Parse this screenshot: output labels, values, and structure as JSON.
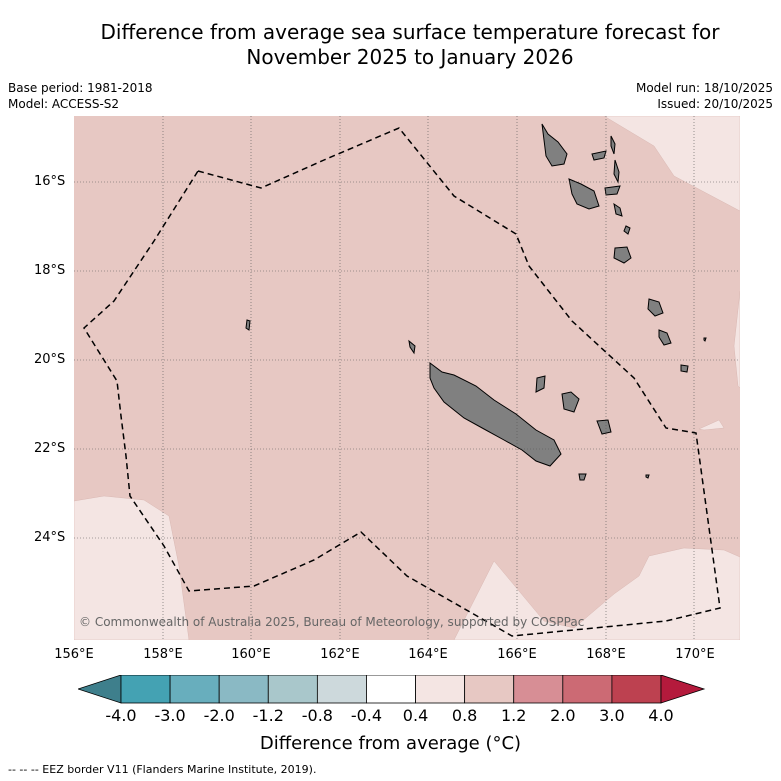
{
  "title_line1": "Difference from average sea surface temperature forecast for",
  "title_line2": "November 2025 to January 2026",
  "meta": {
    "base_period": "Base period: 1981-2018",
    "model": "Model: ACCESS-S2",
    "model_run": "Model run: 18/10/2025",
    "issued": "Issued: 20/10/2025"
  },
  "copyright": "© Commonwealth of Australia 2025, Bureau of Meteorology, supported by COSPPac",
  "axes": {
    "lat_labels": [
      "16°S",
      "18°S",
      "20°S",
      "22°S",
      "24°S"
    ],
    "lon_labels": [
      "156°E",
      "158°E",
      "160°E",
      "162°E",
      "164°E",
      "166°E",
      "168°E",
      "170°E"
    ]
  },
  "colorbar": {
    "title": "Difference from average (°C)",
    "tick_labels": [
      "-4.0",
      "-3.0",
      "-2.0",
      "-1.2",
      "-0.8",
      "-0.4",
      "0.4",
      "0.8",
      "1.2",
      "2.0",
      "3.0",
      "4.0"
    ],
    "colors": {
      "under": "#3e7f8c",
      "bins": [
        "#44a2b3",
        "#68aebd",
        "#8ab9c4",
        "#a9c7cb",
        "#cdd9dc",
        "#ffffff",
        "#f4e5e3",
        "#e7c8c3",
        "#d78e95",
        "#cc6a74",
        "#bd4150"
      ],
      "over": "#b41a3c"
    }
  },
  "map_colors": {
    "primary_anomaly": "#e7c8c3",
    "secondary_anomaly": "#f4e5e3",
    "land": "#808080"
  },
  "eez_legend": "--  --  -- EEZ border V11 (Flanders Marine Institute, 2019)."
}
